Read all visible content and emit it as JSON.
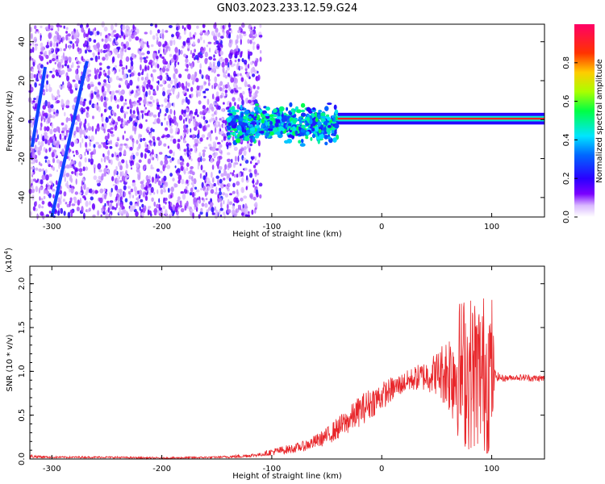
{
  "title": "GN03.2023.233.12.59.G24",
  "chart_data": [
    {
      "type": "heatmap",
      "xlabel": "Height of straight line (km)",
      "ylabel": "Frequency (Hz)",
      "xlim": [
        -320,
        148
      ],
      "ylim": [
        -50,
        49
      ],
      "xticks": [
        -300,
        -200,
        -100,
        0,
        100
      ],
      "yticks": [
        -40,
        -20,
        0,
        20,
        40
      ],
      "colorbar": {
        "label": "Normalized spectral amplitude",
        "range": [
          0.0,
          1.0
        ],
        "ticks": [
          "0.0",
          "0.2",
          "0.4",
          "0.6",
          "0.8"
        ],
        "colormap": [
          "#ffffff",
          "#6f00ff",
          "#0000ff",
          "#00ffff",
          "#00ff00",
          "#ffff00",
          "#ff8000",
          "#ff0000",
          "#ff0066"
        ]
      },
      "features": {
        "noise_region_x": [
          -320,
          -110
        ],
        "stable_band": {
          "x": [
            -40,
            148
          ],
          "frequency": 0.5,
          "amplitude": 0.9
        },
        "transition_band": {
          "x": [
            -140,
            -40
          ],
          "frequency_spread": [
            -12,
            8
          ],
          "amplitude": 0.5
        },
        "streak_1": {
          "x": [
            -318,
            -306
          ],
          "frequency": [
            -14,
            27
          ]
        },
        "streak_2": {
          "x": [
            -300,
            -268
          ],
          "frequency": [
            -50,
            30
          ]
        }
      }
    },
    {
      "type": "line",
      "xlabel": "Height of straight line (km)",
      "ylabel": "SNR (10 * v/v)",
      "yscale_label": "(x10",
      "yscale_exp": "4",
      "xlim": [
        -320,
        148
      ],
      "ylim": [
        0,
        2.2
      ],
      "xticks": [
        -300,
        -200,
        -100,
        0,
        100
      ],
      "yticks": [
        "0.0",
        "0.5",
        "1.0",
        "1.5",
        "2.0"
      ],
      "series": [
        {
          "color": "#e8262a",
          "x": [
            -320,
            -300,
            -250,
            -200,
            -150,
            -130,
            -110,
            -100,
            -90,
            -80,
            -70,
            -60,
            -50,
            -40,
            -30,
            -20,
            -10,
            0,
            10,
            20,
            30,
            40,
            50,
            60,
            70,
            75,
            80,
            85,
            90,
            95,
            100,
            103,
            110,
            120,
            130,
            140,
            148
          ],
          "values": [
            0.03,
            0.02,
            0.02,
            0.01,
            0.02,
            0.03,
            0.05,
            0.08,
            0.1,
            0.12,
            0.15,
            0.2,
            0.26,
            0.35,
            0.44,
            0.55,
            0.64,
            0.72,
            0.8,
            0.87,
            0.92,
            0.95,
            0.98,
            1.0,
            1.02,
            1.0,
            0.98,
            1.0,
            0.97,
            0.99,
            1.0,
            0.95,
            0.92,
            0.93,
            0.93,
            0.92,
            0.92
          ],
          "noise": [
            0.02,
            0.01,
            0.01,
            0.01,
            0.01,
            0.02,
            0.02,
            0.04,
            0.05,
            0.05,
            0.06,
            0.08,
            0.1,
            0.13,
            0.15,
            0.18,
            0.18,
            0.16,
            0.14,
            0.12,
            0.14,
            0.18,
            0.25,
            0.45,
            0.8,
            0.9,
            0.9,
            0.9,
            0.9,
            0.95,
            0.95,
            0.06,
            0.04,
            0.03,
            0.04,
            0.04,
            0.04
          ]
        }
      ]
    }
  ]
}
